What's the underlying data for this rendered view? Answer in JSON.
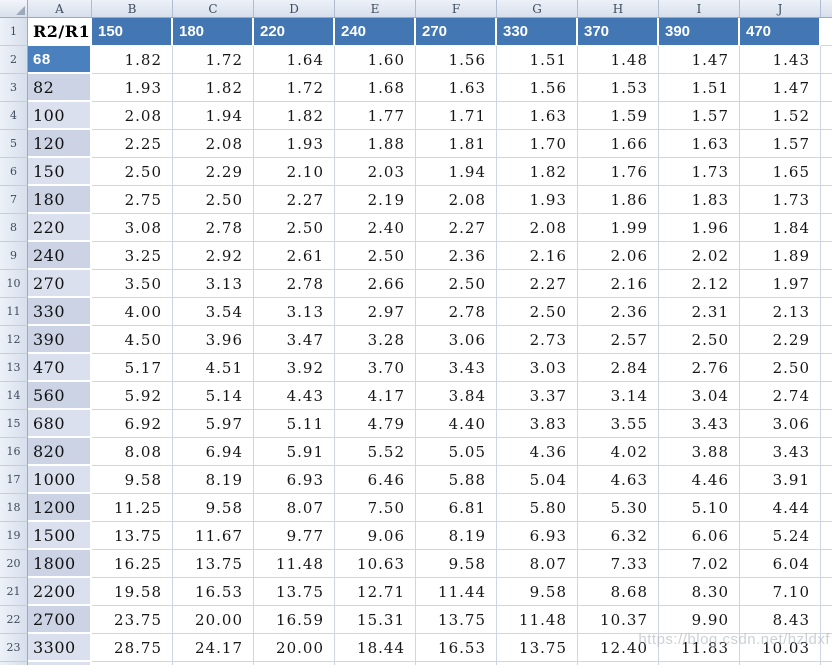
{
  "sheet": {
    "column_letters": [
      "A",
      "B",
      "C",
      "D",
      "E",
      "F",
      "G",
      "H",
      "I",
      "J"
    ],
    "row_numbers": [
      1,
      2,
      3,
      4,
      5,
      6,
      7,
      8,
      9,
      10,
      11,
      12,
      13,
      14,
      15,
      16,
      17,
      18,
      19,
      20,
      21,
      22,
      23
    ],
    "header_row": {
      "a1": "R2/R1",
      "cols": [
        "150",
        "180",
        "220",
        "240",
        "270",
        "330",
        "370",
        "390",
        "470"
      ]
    },
    "rows": [
      {
        "r2": "68",
        "state": "selected",
        "values": [
          "1.82",
          "1.72",
          "1.64",
          "1.60",
          "1.56",
          "1.51",
          "1.48",
          "1.47",
          "1.43"
        ]
      },
      {
        "r2": "82",
        "state": "dark",
        "values": [
          "1.93",
          "1.82",
          "1.72",
          "1.68",
          "1.63",
          "1.56",
          "1.53",
          "1.51",
          "1.47"
        ]
      },
      {
        "r2": "100",
        "state": "light",
        "values": [
          "2.08",
          "1.94",
          "1.82",
          "1.77",
          "1.71",
          "1.63",
          "1.59",
          "1.57",
          "1.52"
        ]
      },
      {
        "r2": "120",
        "state": "dark",
        "values": [
          "2.25",
          "2.08",
          "1.93",
          "1.88",
          "1.81",
          "1.70",
          "1.66",
          "1.63",
          "1.57"
        ]
      },
      {
        "r2": "150",
        "state": "light",
        "values": [
          "2.50",
          "2.29",
          "2.10",
          "2.03",
          "1.94",
          "1.82",
          "1.76",
          "1.73",
          "1.65"
        ]
      },
      {
        "r2": "180",
        "state": "dark",
        "values": [
          "2.75",
          "2.50",
          "2.27",
          "2.19",
          "2.08",
          "1.93",
          "1.86",
          "1.83",
          "1.73"
        ]
      },
      {
        "r2": "220",
        "state": "light",
        "values": [
          "3.08",
          "2.78",
          "2.50",
          "2.40",
          "2.27",
          "2.08",
          "1.99",
          "1.96",
          "1.84"
        ]
      },
      {
        "r2": "240",
        "state": "dark",
        "values": [
          "3.25",
          "2.92",
          "2.61",
          "2.50",
          "2.36",
          "2.16",
          "2.06",
          "2.02",
          "1.89"
        ]
      },
      {
        "r2": "270",
        "state": "light",
        "values": [
          "3.50",
          "3.13",
          "2.78",
          "2.66",
          "2.50",
          "2.27",
          "2.16",
          "2.12",
          "1.97"
        ]
      },
      {
        "r2": "330",
        "state": "dark",
        "values": [
          "4.00",
          "3.54",
          "3.13",
          "2.97",
          "2.78",
          "2.50",
          "2.36",
          "2.31",
          "2.13"
        ]
      },
      {
        "r2": "390",
        "state": "dark",
        "values": [
          "4.50",
          "3.96",
          "3.47",
          "3.28",
          "3.06",
          "2.73",
          "2.57",
          "2.50",
          "2.29"
        ]
      },
      {
        "r2": "470",
        "state": "light",
        "values": [
          "5.17",
          "4.51",
          "3.92",
          "3.70",
          "3.43",
          "3.03",
          "2.84",
          "2.76",
          "2.50"
        ]
      },
      {
        "r2": "560",
        "state": "dark",
        "values": [
          "5.92",
          "5.14",
          "4.43",
          "4.17",
          "3.84",
          "3.37",
          "3.14",
          "3.04",
          "2.74"
        ]
      },
      {
        "r2": "680",
        "state": "light",
        "values": [
          "6.92",
          "5.97",
          "5.11",
          "4.79",
          "4.40",
          "3.83",
          "3.55",
          "3.43",
          "3.06"
        ]
      },
      {
        "r2": "820",
        "state": "dark",
        "values": [
          "8.08",
          "6.94",
          "5.91",
          "5.52",
          "5.05",
          "4.36",
          "4.02",
          "3.88",
          "3.43"
        ]
      },
      {
        "r2": "1000",
        "state": "light",
        "values": [
          "9.58",
          "8.19",
          "6.93",
          "6.46",
          "5.88",
          "5.04",
          "4.63",
          "4.46",
          "3.91"
        ]
      },
      {
        "r2": "1200",
        "state": "dark",
        "values": [
          "11.25",
          "9.58",
          "8.07",
          "7.50",
          "6.81",
          "5.80",
          "5.30",
          "5.10",
          "4.44"
        ]
      },
      {
        "r2": "1500",
        "state": "light",
        "values": [
          "13.75",
          "11.67",
          "9.77",
          "9.06",
          "8.19",
          "6.93",
          "6.32",
          "6.06",
          "5.24"
        ]
      },
      {
        "r2": "1800",
        "state": "dark",
        "values": [
          "16.25",
          "13.75",
          "11.48",
          "10.63",
          "9.58",
          "8.07",
          "7.33",
          "7.02",
          "6.04"
        ]
      },
      {
        "r2": "2200",
        "state": "light",
        "values": [
          "19.58",
          "16.53",
          "13.75",
          "12.71",
          "11.44",
          "9.58",
          "8.68",
          "8.30",
          "7.10"
        ]
      },
      {
        "r2": "2700",
        "state": "dark",
        "values": [
          "23.75",
          "20.00",
          "16.59",
          "15.31",
          "13.75",
          "11.48",
          "10.37",
          "9.90",
          "8.43"
        ]
      },
      {
        "r2": "3300",
        "state": "light",
        "values": [
          "28.75",
          "24.17",
          "20.00",
          "18.44",
          "16.53",
          "13.75",
          "12.40",
          "11.83",
          "10.03"
        ]
      }
    ]
  },
  "watermark": "https://blog.csdn.net/hzldxf",
  "colors": {
    "header_blue": "#4377B4",
    "selected_blue": "#4A80BD",
    "band_dark": "#CBD3E4",
    "band_light": "#DBE0EE",
    "gridline": "#CED6E6"
  }
}
